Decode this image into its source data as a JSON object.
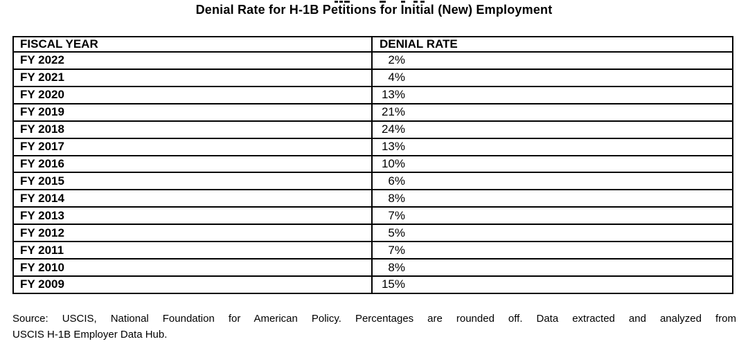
{
  "title": "Denial Rate for H-1B Petitions for Initial (New) Employment",
  "table": {
    "columns": [
      "FISCAL YEAR",
      "DENIAL RATE"
    ],
    "rows": [
      {
        "fiscal_year": "FY 2022",
        "denial_rate": "2%"
      },
      {
        "fiscal_year": "FY 2021",
        "denial_rate": "4%"
      },
      {
        "fiscal_year": "FY 2020",
        "denial_rate": "13%"
      },
      {
        "fiscal_year": "FY 2019",
        "denial_rate": "21%"
      },
      {
        "fiscal_year": "FY 2018",
        "denial_rate": "24%"
      },
      {
        "fiscal_year": "FY 2017",
        "denial_rate": "13%"
      },
      {
        "fiscal_year": "FY 2016",
        "denial_rate": "10%"
      },
      {
        "fiscal_year": "FY 2015",
        "denial_rate": "6%"
      },
      {
        "fiscal_year": "FY 2014",
        "denial_rate": "8%"
      },
      {
        "fiscal_year": "FY 2013",
        "denial_rate": "7%"
      },
      {
        "fiscal_year": "FY 2012",
        "denial_rate": "5%"
      },
      {
        "fiscal_year": "FY 2011",
        "denial_rate": "7%"
      },
      {
        "fiscal_year": "FY 2010",
        "denial_rate": "8%"
      },
      {
        "fiscal_year": "FY 2009",
        "denial_rate": "15%"
      }
    ]
  },
  "source_note": {
    "lines": [
      "Source: USCIS, National Foundation for American Policy. Percentages are rounded off. Data extracted and analyzed from",
      "USCIS H-1B Employer Data Hub."
    ]
  },
  "colors": {
    "text": "#000000",
    "border": "#000000",
    "background": "#ffffff"
  },
  "chart_data": {
    "type": "table",
    "title": "Denial Rate for H-1B Petitions for Initial (New) Employment",
    "columns": [
      "FISCAL YEAR",
      "DENIAL RATE"
    ],
    "categories": [
      "FY 2022",
      "FY 2021",
      "FY 2020",
      "FY 2019",
      "FY 2018",
      "FY 2017",
      "FY 2016",
      "FY 2015",
      "FY 2014",
      "FY 2013",
      "FY 2012",
      "FY 2011",
      "FY 2010",
      "FY 2009"
    ],
    "values_percent": [
      2,
      4,
      13,
      21,
      24,
      13,
      10,
      6,
      8,
      7,
      5,
      7,
      8,
      15
    ],
    "source": "Source: USCIS, National Foundation for American Policy. Percentages are rounded off. Data extracted and analyzed from USCIS H-1B Employer Data Hub."
  }
}
